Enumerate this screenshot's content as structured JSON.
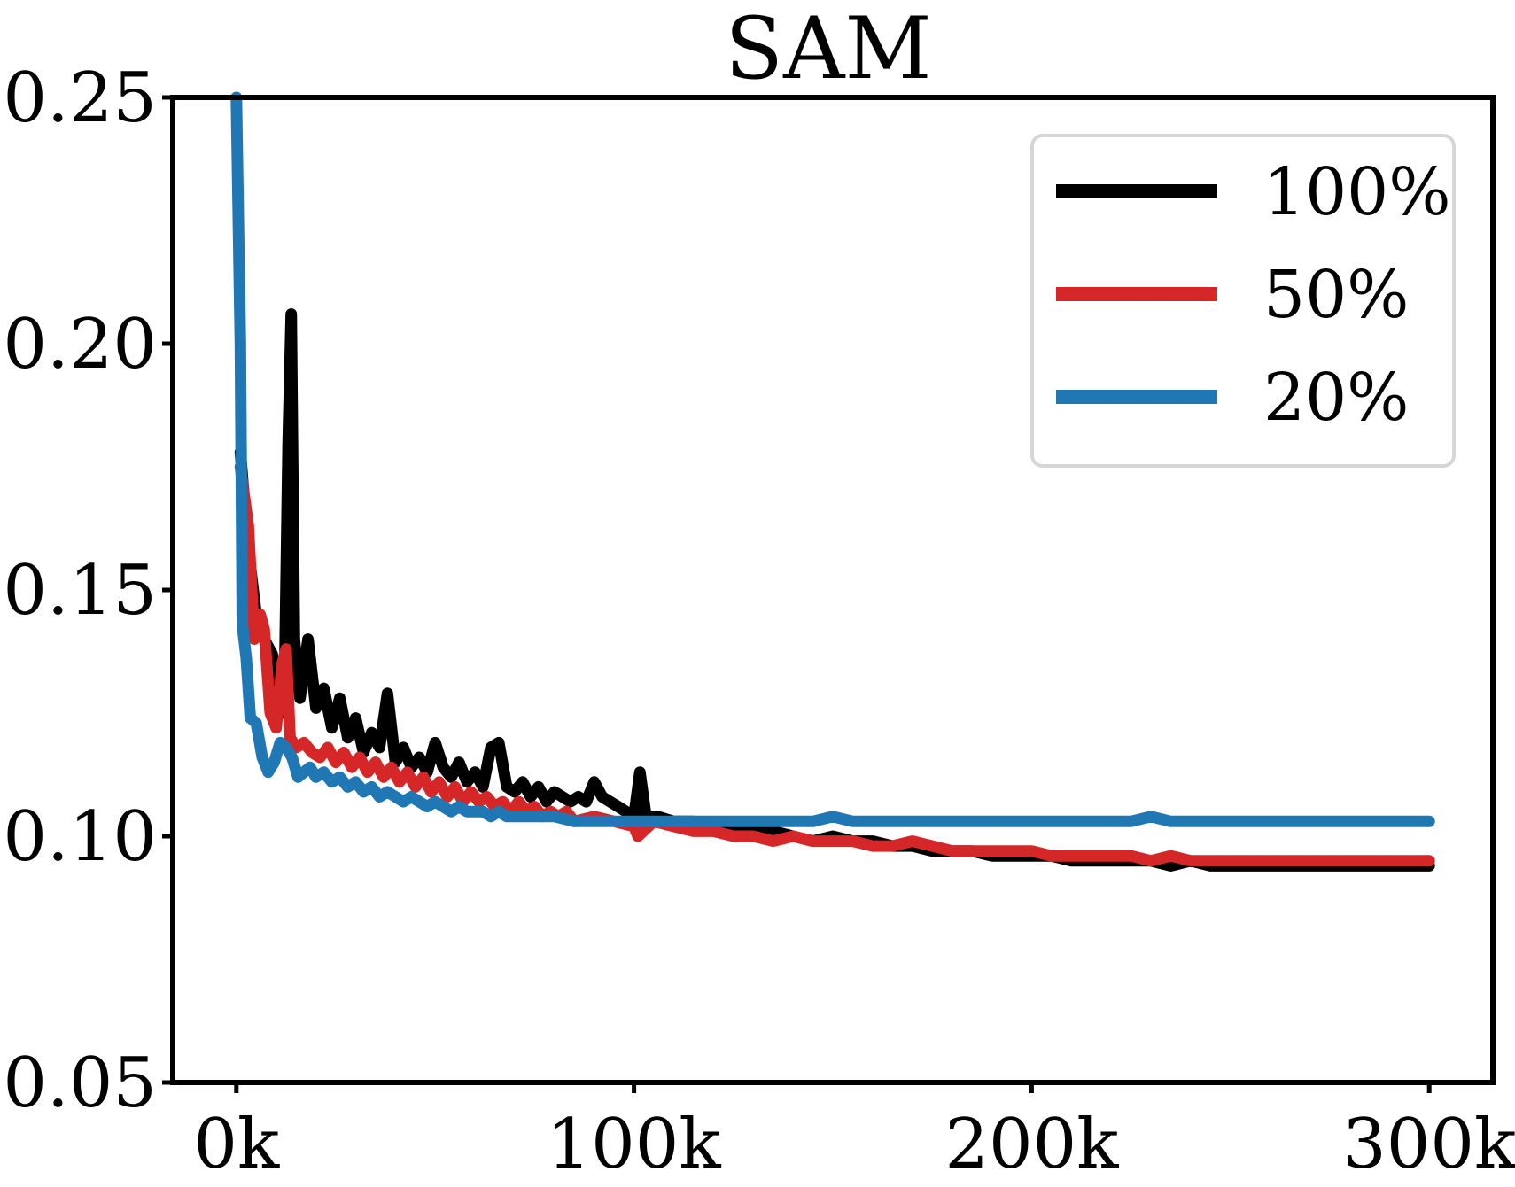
{
  "chart_data": {
    "type": "line",
    "title": "SAM",
    "xlabel": "",
    "ylabel": "",
    "xlim": [
      -16000,
      316000
    ],
    "ylim": [
      0.05,
      0.25
    ],
    "xticks": [
      0,
      100000,
      200000,
      300000
    ],
    "xtick_labels": [
      "0k",
      "100k",
      "200k",
      "300k"
    ],
    "yticks": [
      0.05,
      0.1,
      0.15,
      0.2,
      0.25
    ],
    "ytick_labels": [
      "0.05",
      "0.10",
      "0.15",
      "0.20",
      "0.25"
    ],
    "grid": false,
    "legend_position": "top-right",
    "series": [
      {
        "name": "100%",
        "color": "#000000",
        "points": [
          [
            1000,
            0.178
          ],
          [
            3000,
            0.158
          ],
          [
            5000,
            0.145
          ],
          [
            7000,
            0.14
          ],
          [
            9000,
            0.137
          ],
          [
            10500,
            0.13
          ],
          [
            12000,
            0.125
          ],
          [
            13000,
            0.18
          ],
          [
            13800,
            0.206
          ],
          [
            14600,
            0.14
          ],
          [
            16000,
            0.128
          ],
          [
            18000,
            0.14
          ],
          [
            20000,
            0.126
          ],
          [
            22000,
            0.13
          ],
          [
            24000,
            0.122
          ],
          [
            26000,
            0.128
          ],
          [
            28000,
            0.12
          ],
          [
            30000,
            0.124
          ],
          [
            32000,
            0.117
          ],
          [
            34000,
            0.121
          ],
          [
            36000,
            0.118
          ],
          [
            38000,
            0.129
          ],
          [
            40000,
            0.115
          ],
          [
            42000,
            0.118
          ],
          [
            44000,
            0.114
          ],
          [
            46000,
            0.116
          ],
          [
            48000,
            0.113
          ],
          [
            50000,
            0.119
          ],
          [
            52000,
            0.114
          ],
          [
            54000,
            0.112
          ],
          [
            56000,
            0.115
          ],
          [
            58000,
            0.111
          ],
          [
            60000,
            0.113
          ],
          [
            62000,
            0.11
          ],
          [
            64000,
            0.118
          ],
          [
            66000,
            0.119
          ],
          [
            68000,
            0.11
          ],
          [
            70000,
            0.109
          ],
          [
            72000,
            0.111
          ],
          [
            74000,
            0.108
          ],
          [
            76000,
            0.11
          ],
          [
            78000,
            0.107
          ],
          [
            80000,
            0.109
          ],
          [
            82000,
            0.108
          ],
          [
            84000,
            0.107
          ],
          [
            86000,
            0.108
          ],
          [
            88000,
            0.107
          ],
          [
            90000,
            0.111
          ],
          [
            92000,
            0.108
          ],
          [
            94000,
            0.107
          ],
          [
            96000,
            0.106
          ],
          [
            98000,
            0.105
          ],
          [
            100000,
            0.104
          ],
          [
            101500,
            0.113
          ],
          [
            103000,
            0.104
          ],
          [
            106000,
            0.104
          ],
          [
            110000,
            0.103
          ],
          [
            115000,
            0.103
          ],
          [
            120000,
            0.102
          ],
          [
            125000,
            0.102
          ],
          [
            130000,
            0.101
          ],
          [
            135000,
            0.101
          ],
          [
            140000,
            0.1
          ],
          [
            145000,
            0.099
          ],
          [
            150000,
            0.1
          ],
          [
            155000,
            0.099
          ],
          [
            160000,
            0.099
          ],
          [
            165000,
            0.098
          ],
          [
            170000,
            0.098
          ],
          [
            175000,
            0.097
          ],
          [
            180000,
            0.097
          ],
          [
            185000,
            0.097
          ],
          [
            190000,
            0.096
          ],
          [
            195000,
            0.096
          ],
          [
            200000,
            0.096
          ],
          [
            205000,
            0.096
          ],
          [
            210000,
            0.095
          ],
          [
            215000,
            0.095
          ],
          [
            220000,
            0.095
          ],
          [
            225000,
            0.095
          ],
          [
            230000,
            0.095
          ],
          [
            235000,
            0.094
          ],
          [
            240000,
            0.095
          ],
          [
            245000,
            0.094
          ],
          [
            250000,
            0.094
          ],
          [
            255000,
            0.094
          ],
          [
            260000,
            0.094
          ],
          [
            265000,
            0.094
          ],
          [
            270000,
            0.094
          ],
          [
            275000,
            0.094
          ],
          [
            280000,
            0.094
          ],
          [
            285000,
            0.094
          ],
          [
            290000,
            0.094
          ],
          [
            295000,
            0.094
          ],
          [
            300000,
            0.094
          ]
        ]
      },
      {
        "name": "50%",
        "color": "#d62728",
        "points": [
          [
            1000,
            0.175
          ],
          [
            3000,
            0.163
          ],
          [
            4500,
            0.14
          ],
          [
            6000,
            0.145
          ],
          [
            7000,
            0.142
          ],
          [
            8500,
            0.125
          ],
          [
            10000,
            0.122
          ],
          [
            11500,
            0.135
          ],
          [
            12500,
            0.138
          ],
          [
            13500,
            0.12
          ],
          [
            15000,
            0.118
          ],
          [
            17000,
            0.119
          ],
          [
            19000,
            0.117
          ],
          [
            21000,
            0.116
          ],
          [
            23000,
            0.118
          ],
          [
            25000,
            0.115
          ],
          [
            27000,
            0.117
          ],
          [
            29000,
            0.114
          ],
          [
            31000,
            0.116
          ],
          [
            33000,
            0.113
          ],
          [
            35000,
            0.115
          ],
          [
            37000,
            0.112
          ],
          [
            39000,
            0.114
          ],
          [
            41000,
            0.111
          ],
          [
            43000,
            0.113
          ],
          [
            45000,
            0.11
          ],
          [
            47000,
            0.112
          ],
          [
            49000,
            0.109
          ],
          [
            51000,
            0.111
          ],
          [
            53000,
            0.108
          ],
          [
            55000,
            0.11
          ],
          [
            57000,
            0.107
          ],
          [
            59000,
            0.109
          ],
          [
            61000,
            0.107
          ],
          [
            63000,
            0.108
          ],
          [
            65000,
            0.106
          ],
          [
            67000,
            0.107
          ],
          [
            69000,
            0.105
          ],
          [
            71000,
            0.107
          ],
          [
            73000,
            0.105
          ],
          [
            75000,
            0.106
          ],
          [
            77000,
            0.104
          ],
          [
            79000,
            0.105
          ],
          [
            81000,
            0.104
          ],
          [
            83000,
            0.105
          ],
          [
            85000,
            0.103
          ],
          [
            90000,
            0.104
          ],
          [
            95000,
            0.103
          ],
          [
            100000,
            0.102
          ],
          [
            101000,
            0.1
          ],
          [
            105000,
            0.103
          ],
          [
            110000,
            0.102
          ],
          [
            115000,
            0.101
          ],
          [
            120000,
            0.101
          ],
          [
            125000,
            0.1
          ],
          [
            130000,
            0.1
          ],
          [
            135000,
            0.099
          ],
          [
            140000,
            0.1
          ],
          [
            145000,
            0.099
          ],
          [
            150000,
            0.099
          ],
          [
            155000,
            0.099
          ],
          [
            160000,
            0.098
          ],
          [
            165000,
            0.098
          ],
          [
            170000,
            0.099
          ],
          [
            175000,
            0.098
          ],
          [
            180000,
            0.097
          ],
          [
            185000,
            0.097
          ],
          [
            190000,
            0.097
          ],
          [
            195000,
            0.097
          ],
          [
            200000,
            0.097
          ],
          [
            205000,
            0.096
          ],
          [
            210000,
            0.096
          ],
          [
            215000,
            0.096
          ],
          [
            220000,
            0.096
          ],
          [
            225000,
            0.096
          ],
          [
            230000,
            0.095
          ],
          [
            235000,
            0.096
          ],
          [
            240000,
            0.095
          ],
          [
            245000,
            0.095
          ],
          [
            250000,
            0.095
          ],
          [
            255000,
            0.095
          ],
          [
            260000,
            0.095
          ],
          [
            265000,
            0.095
          ],
          [
            270000,
            0.095
          ],
          [
            275000,
            0.095
          ],
          [
            280000,
            0.095
          ],
          [
            285000,
            0.095
          ],
          [
            290000,
            0.095
          ],
          [
            295000,
            0.095
          ],
          [
            300000,
            0.095
          ]
        ]
      },
      {
        "name": "20%",
        "color": "#1f77b4",
        "points": [
          [
            0,
            0.25
          ],
          [
            1000,
            0.2
          ],
          [
            1500,
            0.143
          ],
          [
            2500,
            0.136
          ],
          [
            3500,
            0.124
          ],
          [
            5000,
            0.123
          ],
          [
            6500,
            0.116
          ],
          [
            8000,
            0.113
          ],
          [
            9500,
            0.115
          ],
          [
            11000,
            0.119
          ],
          [
            12500,
            0.118
          ],
          [
            14000,
            0.116
          ],
          [
            15500,
            0.112
          ],
          [
            17000,
            0.113
          ],
          [
            18500,
            0.114
          ],
          [
            20000,
            0.112
          ],
          [
            22000,
            0.113
          ],
          [
            24000,
            0.111
          ],
          [
            26000,
            0.112
          ],
          [
            28000,
            0.11
          ],
          [
            30000,
            0.111
          ],
          [
            32000,
            0.109
          ],
          [
            34000,
            0.11
          ],
          [
            36000,
            0.108
          ],
          [
            38000,
            0.109
          ],
          [
            40000,
            0.108
          ],
          [
            42000,
            0.107
          ],
          [
            44000,
            0.108
          ],
          [
            46000,
            0.107
          ],
          [
            48000,
            0.106
          ],
          [
            50000,
            0.107
          ],
          [
            52000,
            0.106
          ],
          [
            54000,
            0.105
          ],
          [
            56000,
            0.106
          ],
          [
            58000,
            0.105
          ],
          [
            60000,
            0.105
          ],
          [
            62000,
            0.105
          ],
          [
            64000,
            0.104
          ],
          [
            66000,
            0.105
          ],
          [
            68000,
            0.104
          ],
          [
            70000,
            0.104
          ],
          [
            75000,
            0.104
          ],
          [
            80000,
            0.104
          ],
          [
            85000,
            0.103
          ],
          [
            90000,
            0.103
          ],
          [
            95000,
            0.103
          ],
          [
            100000,
            0.103
          ],
          [
            105000,
            0.103
          ],
          [
            110000,
            0.103
          ],
          [
            115000,
            0.103
          ],
          [
            120000,
            0.103
          ],
          [
            125000,
            0.103
          ],
          [
            130000,
            0.103
          ],
          [
            135000,
            0.103
          ],
          [
            140000,
            0.103
          ],
          [
            145000,
            0.103
          ],
          [
            150000,
            0.104
          ],
          [
            155000,
            0.103
          ],
          [
            160000,
            0.103
          ],
          [
            165000,
            0.103
          ],
          [
            170000,
            0.103
          ],
          [
            175000,
            0.103
          ],
          [
            180000,
            0.103
          ],
          [
            185000,
            0.103
          ],
          [
            190000,
            0.103
          ],
          [
            195000,
            0.103
          ],
          [
            200000,
            0.103
          ],
          [
            205000,
            0.103
          ],
          [
            210000,
            0.103
          ],
          [
            215000,
            0.103
          ],
          [
            220000,
            0.103
          ],
          [
            225000,
            0.103
          ],
          [
            230000,
            0.104
          ],
          [
            235000,
            0.103
          ],
          [
            240000,
            0.103
          ],
          [
            245000,
            0.103
          ],
          [
            250000,
            0.103
          ],
          [
            255000,
            0.103
          ],
          [
            260000,
            0.103
          ],
          [
            265000,
            0.103
          ],
          [
            270000,
            0.103
          ],
          [
            275000,
            0.103
          ],
          [
            280000,
            0.103
          ],
          [
            285000,
            0.103
          ],
          [
            290000,
            0.103
          ],
          [
            295000,
            0.103
          ],
          [
            300000,
            0.103
          ]
        ]
      }
    ]
  }
}
